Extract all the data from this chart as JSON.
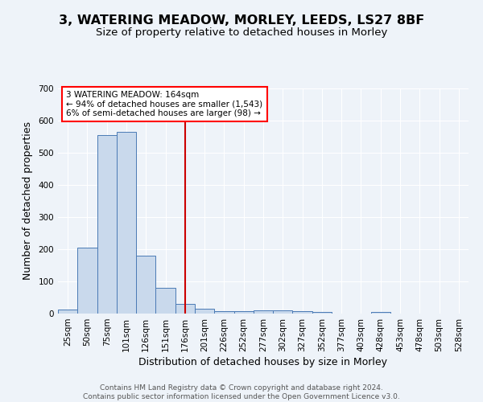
{
  "title": "3, WATERING MEADOW, MORLEY, LEEDS, LS27 8BF",
  "subtitle": "Size of property relative to detached houses in Morley",
  "xlabel": "Distribution of detached houses by size in Morley",
  "ylabel": "Number of detached properties",
  "footer_line1": "Contains HM Land Registry data © Crown copyright and database right 2024.",
  "footer_line2": "Contains public sector information licensed under the Open Government Licence v3.0.",
  "bar_labels": [
    "25sqm",
    "50sqm",
    "75sqm",
    "101sqm",
    "126sqm",
    "151sqm",
    "176sqm",
    "201sqm",
    "226sqm",
    "252sqm",
    "277sqm",
    "302sqm",
    "327sqm",
    "352sqm",
    "377sqm",
    "403sqm",
    "428sqm",
    "453sqm",
    "478sqm",
    "503sqm",
    "528sqm"
  ],
  "bar_values": [
    12,
    204,
    555,
    565,
    180,
    80,
    30,
    14,
    8,
    7,
    9,
    9,
    8,
    5,
    0,
    0,
    5,
    0,
    0,
    0,
    0
  ],
  "bar_color": "#c9d9ec",
  "bar_edge_color": "#4a7ab5",
  "vline_x": 6.0,
  "vline_color": "#cc0000",
  "annotation_line1": "3 WATERING MEADOW: 164sqm",
  "annotation_line2": "← 94% of detached houses are smaller (1,543)",
  "annotation_line3": "6% of semi-detached houses are larger (98) →",
  "annotation_box_color": "white",
  "annotation_box_edge": "red",
  "ylim": [
    0,
    700
  ],
  "yticks": [
    0,
    100,
    200,
    300,
    400,
    500,
    600,
    700
  ],
  "bg_color": "#eef3f9",
  "grid_color": "white",
  "title_fontsize": 11.5,
  "subtitle_fontsize": 9.5,
  "axis_label_fontsize": 9,
  "tick_fontsize": 7.5,
  "footer_fontsize": 6.5
}
